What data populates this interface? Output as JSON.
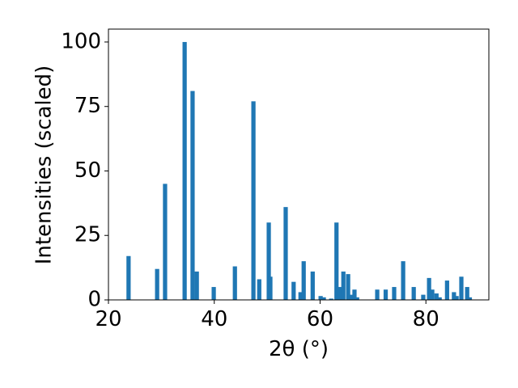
{
  "chart_data": {
    "type": "bar",
    "xlabel": "2θ (°)",
    "ylabel": "Intensities (scaled)",
    "color": "#1f77b4",
    "x": [
      23.8,
      29.2,
      30.7,
      34.4,
      35.9,
      36.7,
      39.9,
      43.9,
      47.4,
      48.5,
      50.3,
      50.6,
      53.5,
      55.0,
      56.3,
      56.9,
      58.6,
      60.1,
      60.7,
      62.1,
      63.1,
      63.8,
      64.4,
      65.3,
      65.9,
      66.5,
      67.0,
      70.8,
      72.4,
      74.0,
      75.7,
      77.7,
      79.5,
      80.6,
      81.2,
      82.0,
      82.6,
      84.0,
      85.3,
      85.8,
      86.7,
      87.8,
      88.3
    ],
    "values": [
      17,
      12,
      45,
      100,
      81,
      11,
      5,
      13,
      77,
      8,
      30,
      9,
      36,
      7,
      3,
      15,
      11,
      1.5,
      1,
      0.5,
      30,
      5,
      11,
      10,
      2,
      4,
      1,
      4,
      4,
      5,
      15,
      5,
      2,
      8.5,
      4,
      2.5,
      1,
      7.5,
      3,
      1.5,
      9,
      5,
      1
    ],
    "xlim": [
      20,
      91.9
    ],
    "ylim": [
      0,
      105
    ],
    "xticks": [
      20,
      40,
      60,
      80
    ],
    "yticks": [
      0,
      25,
      50,
      75,
      100
    ]
  }
}
